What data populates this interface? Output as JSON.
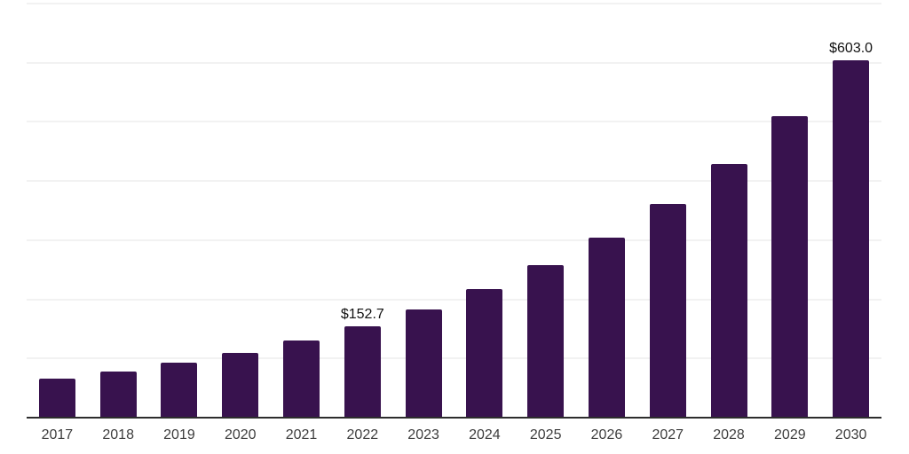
{
  "chart_data": {
    "type": "bar",
    "title": "",
    "xlabel": "",
    "ylabel": "",
    "categories": [
      "2017",
      "2018",
      "2019",
      "2020",
      "2021",
      "2022",
      "2023",
      "2024",
      "2025",
      "2026",
      "2027",
      "2028",
      "2029",
      "2030"
    ],
    "values": [
      64.7,
      76.8,
      91.2,
      108.3,
      128.6,
      152.7,
      181.3,
      215.3,
      255.6,
      303.4,
      360.3,
      427.8,
      507.9,
      603.0
    ],
    "data_labels": [
      "",
      "",
      "",
      "",
      "",
      "$152.7",
      "",
      "",
      "",
      "",
      "",
      "",
      "",
      "$603.0"
    ],
    "ylim": [
      0,
      700
    ],
    "gridline_step": 100,
    "grid": "horizontal",
    "y_tick_labels_visible": false,
    "legend_position": "none",
    "colors": {
      "bar": "#38124e",
      "axis_line": "#2d2d2d",
      "gridline": "#f2f2f2",
      "x_tick_label": "#3e3e3e",
      "data_label": "#111111",
      "background": "#ffffff"
    }
  }
}
